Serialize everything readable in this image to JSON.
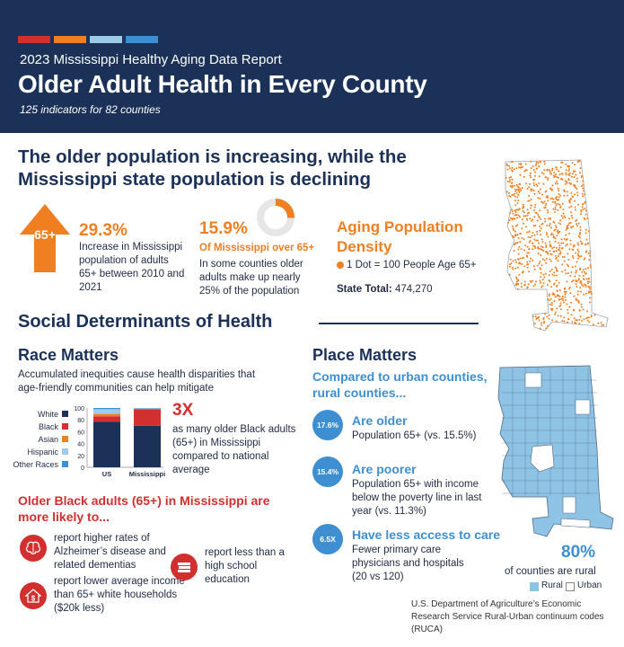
{
  "header": {
    "report_name": "2023 Mississippi Healthy Aging Data Report",
    "title": "Older Adult Health in Every County",
    "indicators": "125 indicators for 82 counties",
    "stripe_colors": [
      "#d22f2f",
      "#f07f22",
      "#9ecbe8",
      "#3d8fd1"
    ]
  },
  "population": {
    "headline": "The older population is increasing, while the Mississippi state population is declining",
    "arrow_label": "65+",
    "increase_value": "29.3%",
    "increase_desc": "Increase in Mississippi population of adults 65+ between 2010 and 2021",
    "share_value": "15.9%",
    "share_label": "Of Mississippi over 65+",
    "share_desc": "In some counties older adults make up nearly 25% of the population",
    "share_fraction": 0.159,
    "density_title": "Aging Population Density",
    "density_legend": "1 Dot = 100 People Age 65+",
    "state_total_label": "State Total:",
    "state_total_value": "474,270"
  },
  "sdoh": {
    "title": "Social Determinants of Health"
  },
  "race": {
    "title": "Race Matters",
    "intro": "Accumulated inequities cause health disparities that age-friendly communities can help mitigate",
    "stat_value": "3X",
    "stat_desc": "as many older Black adults (65+) in Mississippi compared to national average",
    "list_title": "Older Black adults (65+) in Mississippi are more likely to...",
    "items": {
      "alzheimers": "report higher rates of Alzheimer’s disease and related dementias",
      "income": "report lower average income than 65+ white households ($20k less)",
      "education": "report less than a high school education"
    }
  },
  "chart_data": {
    "type": "bar",
    "stacked": true,
    "categories": [
      "US",
      "Mississippi"
    ],
    "series": [
      {
        "name": "White",
        "values": [
          77,
          70
        ],
        "color": "#1b3158"
      },
      {
        "name": "Black",
        "values": [
          9,
          28
        ],
        "color": "#d22f2f"
      },
      {
        "name": "Asian",
        "values": [
          4,
          0.5
        ],
        "color": "#f07f22"
      },
      {
        "name": "Hispanic",
        "values": [
          8,
          1
        ],
        "color": "#9ecbe8"
      },
      {
        "name": "Other Races",
        "values": [
          2,
          0.5
        ],
        "color": "#3d8fd1"
      }
    ],
    "ylim": [
      0,
      100
    ],
    "yticks": [
      "0",
      "20",
      "40",
      "60",
      "80",
      "100"
    ],
    "legend_position": "left"
  },
  "place": {
    "title": "Place Matters",
    "subtitle": "Compared to urban counties, rural counties...",
    "items": [
      {
        "badge": "17.6%",
        "heading": "Are older",
        "desc": "Population 65+ (vs. 15.5%)"
      },
      {
        "badge": "15.4%",
        "heading": "Are poorer",
        "desc": "Population 65+ with income below the poverty line in last year (vs. 11.3%)"
      },
      {
        "badge": "6.5X",
        "heading": "Have less access to care",
        "desc": "Fewer primary care physicians and hospitals (20 vs 120)"
      }
    ],
    "rural_pct": "80%",
    "rural_label": "of counties are rural",
    "legend_rural": "Rural",
    "legend_urban": "Urban",
    "source": "U.S. Department of Agriculture’s Economic Research Service Rural-Urban continuum codes (RUCA)"
  }
}
